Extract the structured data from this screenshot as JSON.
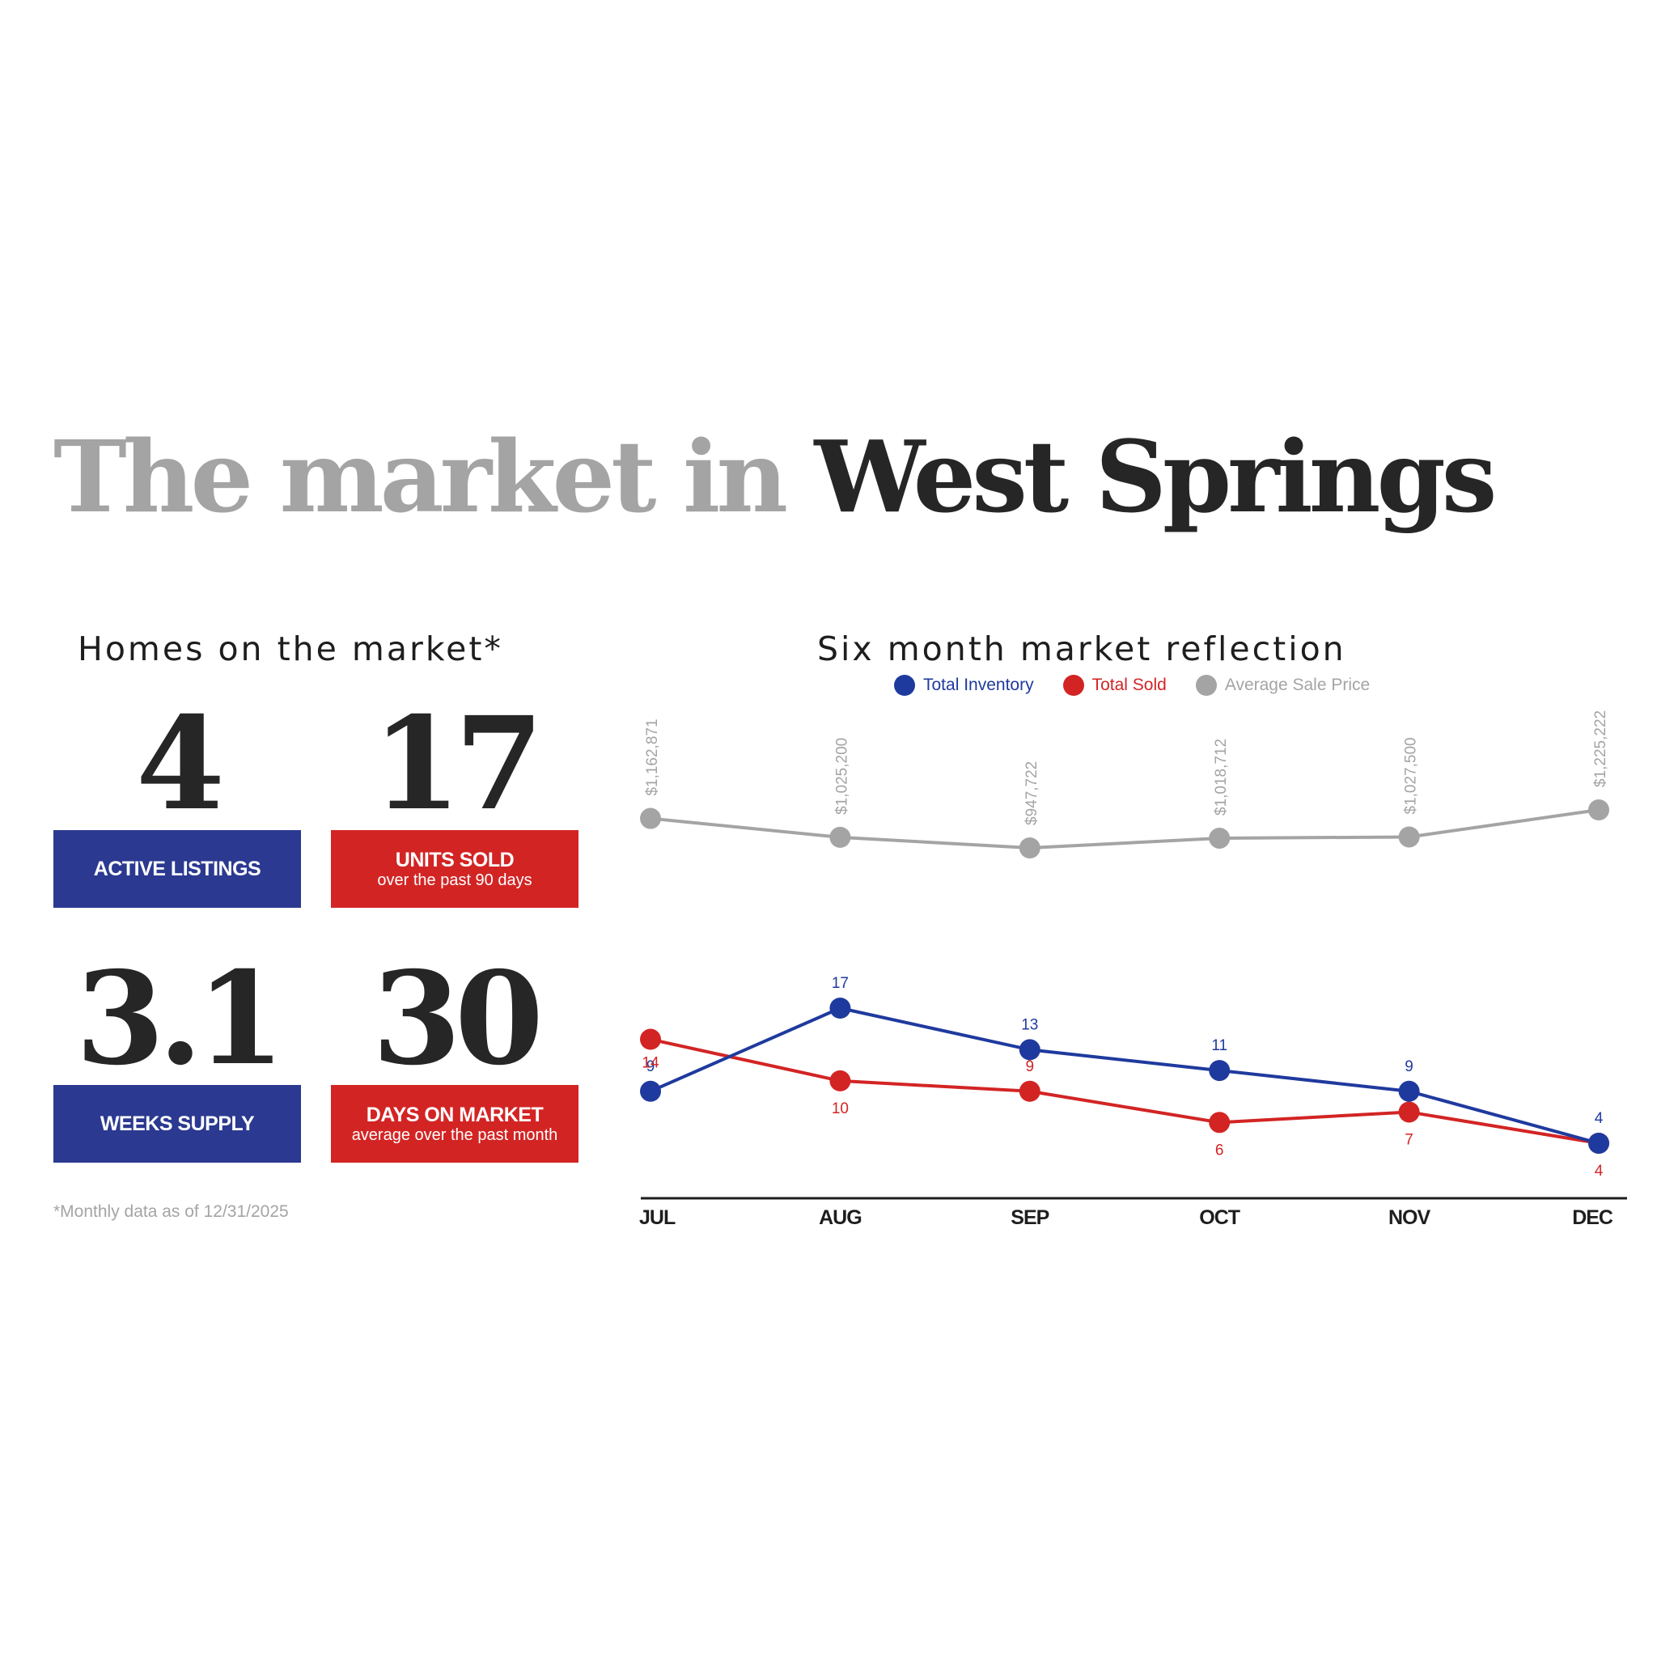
{
  "title": {
    "part1": "The market in",
    "part2": "West Springs"
  },
  "stats_heading": "Homes on the market*",
  "stats": [
    {
      "value": "4",
      "label": "ACTIVE LISTINGS",
      "sublabel": "",
      "color": "#2b3990"
    },
    {
      "value": "17",
      "label": "UNITS SOLD",
      "sublabel": "over the past 90 days",
      "color": "#d32424"
    },
    {
      "value": "3.1",
      "label": "WEEKS SUPPLY",
      "sublabel": "",
      "color": "#2b3990"
    },
    {
      "value": "30",
      "label": "DAYS ON MARKET",
      "sublabel": "average over the past month",
      "color": "#d32424"
    }
  ],
  "footnote": "*Monthly data as of 12/31/2025",
  "chart_data": {
    "type": "line",
    "title": "Six month market reflection",
    "categories": [
      "JUL",
      "AUG",
      "SEP",
      "OCT",
      "NOV",
      "DEC"
    ],
    "series": [
      {
        "name": "Total Inventory",
        "color": "#1f3a9e",
        "values": [
          9,
          17,
          13,
          11,
          9,
          4
        ],
        "labels": [
          "9",
          "17",
          "13",
          "11",
          "9",
          "4"
        ]
      },
      {
        "name": "Total Sold",
        "color": "#d32424",
        "values": [
          14,
          10,
          9,
          6,
          7,
          4
        ],
        "labels": [
          "14",
          "10",
          "9",
          "6",
          "7",
          "4"
        ]
      },
      {
        "name": "Average Sale Price",
        "color": "#a4a4a4",
        "values": [
          1162871,
          1025200,
          947722,
          1018712,
          1027500,
          1225222
        ],
        "labels": [
          "$1,162,871",
          "$1,025,200",
          "$947,722",
          "$1,018,712",
          "$1,027,500",
          "$1,225,222"
        ]
      }
    ],
    "legend_position": "top",
    "grid": false
  }
}
